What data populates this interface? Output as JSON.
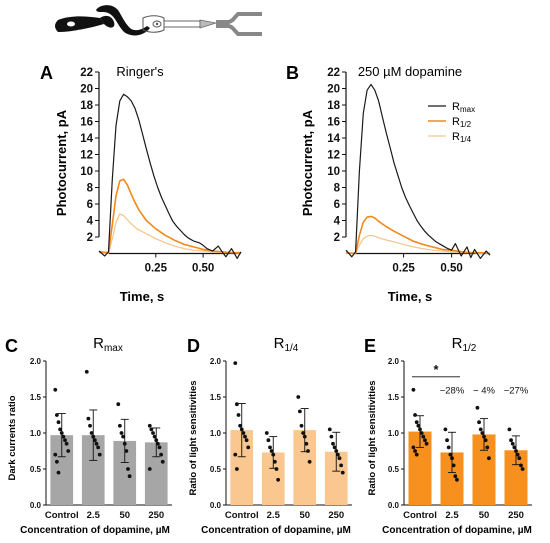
{
  "colors": {
    "black": "#1a1a1a",
    "orange": "#f0881a",
    "light_orange": "#f7c38c",
    "gray_bar": "#a6a6a6",
    "peach_bar": "#f9c78f",
    "orange_bar": "#f7901e"
  },
  "chart_data": [
    {
      "type": "line",
      "panel": "A",
      "title": "Ringer's",
      "xlabel": "Time, s",
      "ylabel": "Photocurrent, pA",
      "xlim": [
        -0.05,
        0.7
      ],
      "ylim": [
        -2,
        22
      ],
      "xticks": [
        "0.25",
        "0.50"
      ],
      "yticks": [
        "2",
        "4",
        "6",
        "8",
        "10",
        "12",
        "14",
        "16",
        "18",
        "20",
        "22"
      ],
      "series": [
        {
          "name": "R_max",
          "color": "#1a1a1a",
          "x": [
            -0.05,
            -0.02,
            0.0,
            0.02,
            0.04,
            0.06,
            0.08,
            0.1,
            0.12,
            0.14,
            0.16,
            0.18,
            0.2,
            0.22,
            0.24,
            0.26,
            0.28,
            0.3,
            0.32,
            0.34,
            0.36,
            0.38,
            0.4,
            0.42,
            0.45,
            0.48,
            0.5,
            0.52,
            0.55,
            0.58,
            0.6,
            0.62,
            0.65,
            0.68,
            0.7
          ],
          "y": [
            0.3,
            -0.3,
            0.2,
            9,
            15.5,
            18.5,
            19.3,
            19,
            18.5,
            17.6,
            16.2,
            14.5,
            12.7,
            11,
            9.4,
            8,
            6.8,
            5.8,
            4.8,
            3.9,
            3.3,
            2.8,
            2.3,
            1.9,
            1.5,
            1.3,
            1,
            0.6,
            0.3,
            0.9,
            0.2,
            -0.4,
            0.6,
            -0.6,
            0.2
          ]
        },
        {
          "name": "R_1/2",
          "color": "#f0881a",
          "x": [
            -0.05,
            0.0,
            0.02,
            0.04,
            0.06,
            0.08,
            0.1,
            0.12,
            0.14,
            0.16,
            0.2,
            0.25,
            0.3,
            0.35,
            0.4,
            0.45,
            0.5,
            0.55,
            0.6,
            0.65,
            0.7
          ],
          "y": [
            0.2,
            0.1,
            3.5,
            7,
            8.8,
            9,
            8.3,
            7.2,
            6.2,
            5.3,
            4,
            3,
            2.2,
            1.6,
            1.1,
            0.8,
            0.5,
            0.3,
            0.2,
            0.1,
            0.1
          ]
        },
        {
          "name": "R_1/4",
          "color": "#f7c38c",
          "x": [
            -0.05,
            0.0,
            0.02,
            0.04,
            0.06,
            0.08,
            0.1,
            0.12,
            0.15,
            0.2,
            0.25,
            0.3,
            0.35,
            0.4,
            0.45,
            0.5,
            0.55,
            0.6,
            0.65,
            0.7
          ],
          "y": [
            0.1,
            0.0,
            1.8,
            3.8,
            4.8,
            4.6,
            4.1,
            3.6,
            3,
            2.4,
            1.8,
            1.3,
            0.9,
            0.6,
            0.4,
            0.3,
            0.2,
            0.1,
            0.1,
            0.0
          ]
        }
      ]
    },
    {
      "type": "line",
      "panel": "B",
      "title": "250 µM dopamine",
      "xlabel": "Time, s",
      "ylabel": "Photocurrent, pA",
      "xlim": [
        -0.05,
        0.7
      ],
      "ylim": [
        -2,
        22
      ],
      "xticks": [
        "0.25",
        "0.50"
      ],
      "yticks": [
        "2",
        "4",
        "6",
        "8",
        "10",
        "12",
        "14",
        "16",
        "18",
        "20",
        "22"
      ],
      "legend": {
        "position": "top-right",
        "entries": [
          "R_max",
          "R_1/2",
          "R_1/4"
        ]
      },
      "series": [
        {
          "name": "R_max",
          "color": "#1a1a1a",
          "x": [
            -0.05,
            -0.02,
            0.0,
            0.02,
            0.04,
            0.06,
            0.08,
            0.1,
            0.12,
            0.14,
            0.16,
            0.18,
            0.2,
            0.22,
            0.24,
            0.26,
            0.28,
            0.3,
            0.32,
            0.34,
            0.36,
            0.38,
            0.4,
            0.42,
            0.45,
            0.48,
            0.5,
            0.52,
            0.55,
            0.58,
            0.6,
            0.62,
            0.65,
            0.68,
            0.7
          ],
          "y": [
            0.4,
            -0.4,
            0.2,
            10,
            17,
            19.8,
            20.5,
            19.8,
            18.5,
            16.5,
            14.6,
            12.8,
            11,
            9.5,
            8,
            6.8,
            5.8,
            4.9,
            4,
            3.3,
            2.7,
            2.2,
            1.8,
            1.4,
            1,
            0.6,
            0.4,
            1.2,
            -0.3,
            0.8,
            -0.5,
            0.5,
            -0.6,
            0.3,
            -0.2
          ]
        },
        {
          "name": "R_1/2",
          "color": "#f0881a",
          "x": [
            -0.05,
            0.0,
            0.02,
            0.04,
            0.06,
            0.08,
            0.1,
            0.12,
            0.15,
            0.2,
            0.25,
            0.3,
            0.35,
            0.4,
            0.45,
            0.5,
            0.55,
            0.6,
            0.65,
            0.7
          ],
          "y": [
            0.1,
            0.0,
            2.2,
            3.8,
            4.4,
            4.5,
            4.3,
            3.9,
            3.4,
            2.7,
            2.1,
            1.5,
            1.1,
            0.8,
            0.5,
            0.4,
            0.2,
            0.1,
            0.1,
            0.0
          ]
        },
        {
          "name": "R_1/4",
          "color": "#f7c38c",
          "x": [
            -0.05,
            0.0,
            0.02,
            0.04,
            0.06,
            0.08,
            0.1,
            0.12,
            0.15,
            0.2,
            0.25,
            0.3,
            0.35,
            0.4,
            0.45,
            0.5,
            0.55,
            0.6,
            0.65,
            0.7
          ],
          "y": [
            0.0,
            0.0,
            1.0,
            1.8,
            2.1,
            2.2,
            2.1,
            1.9,
            1.7,
            1.4,
            1.1,
            0.8,
            0.6,
            0.4,
            0.3,
            0.2,
            0.1,
            0.1,
            0.0,
            0.0
          ]
        }
      ]
    },
    {
      "type": "bar",
      "panel": "C",
      "title": "R_max",
      "xlabel": "Concentration of dopamine, µM",
      "ylabel": "Dark currents ratio",
      "ylim": [
        0,
        2.0
      ],
      "yticks": [
        "0.0",
        "0.5",
        "1.0",
        "1.5",
        "2.0"
      ],
      "categories": [
        "Control",
        "2.5",
        "50",
        "250"
      ],
      "values": [
        0.97,
        0.97,
        0.89,
        0.87
      ],
      "errors": [
        0.3,
        0.35,
        0.3,
        0.2
      ],
      "bar_color": "#a6a6a6",
      "points": [
        [
          1.6,
          1.25,
          1.15,
          1.05,
          1.0,
          0.95,
          0.9,
          0.85,
          0.75,
          0.7,
          0.6,
          0.45
        ],
        [
          1.85,
          1.2,
          1.1,
          1.0,
          0.95,
          0.9,
          0.85,
          0.8,
          0.7
        ],
        [
          1.4,
          1.1,
          1.0,
          0.95,
          0.85,
          0.75,
          0.5,
          0.4
        ],
        [
          1.1,
          1.05,
          1.0,
          0.95,
          0.9,
          0.85,
          0.8,
          0.7,
          0.6,
          0.5
        ]
      ]
    },
    {
      "type": "bar",
      "panel": "D",
      "title": "R_1/4",
      "xlabel": "Concentration of dopamine, µM",
      "ylabel": "Ratio of light sensitivities",
      "ylim": [
        0,
        2.0
      ],
      "yticks": [
        "0.0",
        "0.5",
        "1.0",
        "1.5",
        "2.0"
      ],
      "categories": [
        "Control",
        "2.5",
        "50",
        "250"
      ],
      "values": [
        1.04,
        0.73,
        1.04,
        0.74
      ],
      "errors": [
        0.37,
        0.22,
        0.3,
        0.27
      ],
      "bar_color": "#f9c78f",
      "points": [
        [
          1.97,
          1.4,
          1.25,
          1.1,
          1.05,
          1.0,
          0.95,
          0.9,
          0.8,
          0.7,
          0.5
        ],
        [
          1.0,
          0.9,
          0.8,
          0.75,
          0.7,
          0.6,
          0.5,
          0.35
        ],
        [
          1.5,
          1.3,
          1.1,
          1.0,
          0.95,
          0.85,
          0.75,
          0.6
        ],
        [
          1.05,
          0.95,
          0.85,
          0.8,
          0.75,
          0.7,
          0.65,
          0.55,
          0.45
        ]
      ]
    },
    {
      "type": "bar",
      "panel": "E",
      "title": "R_1/2",
      "xlabel": "Concentration of dopamine, µM",
      "ylabel": "Ratio of light sensitivities",
      "ylim": [
        0,
        2.0
      ],
      "yticks": [
        "0.0",
        "0.5",
        "1.0",
        "1.5",
        "2.0"
      ],
      "categories": [
        "Control",
        "2.5",
        "50",
        "250"
      ],
      "values": [
        1.02,
        0.73,
        0.98,
        0.76
      ],
      "errors": [
        0.22,
        0.28,
        0.22,
        0.2
      ],
      "bar_color": "#f7901e",
      "points": [
        [
          1.6,
          1.25,
          1.15,
          1.1,
          1.05,
          1.0,
          0.95,
          0.9,
          0.85,
          0.8,
          0.75,
          0.7
        ],
        [
          1.05,
          0.9,
          0.8,
          0.7,
          0.65,
          0.55,
          0.4,
          0.35
        ],
        [
          1.35,
          1.15,
          1.05,
          1.0,
          0.95,
          0.9,
          0.8,
          0.65
        ],
        [
          1.05,
          0.9,
          0.85,
          0.8,
          0.75,
          0.7,
          0.65,
          0.55,
          0.5
        ]
      ],
      "annotations": {
        "significance": "*",
        "percent_labels": [
          "−28%",
          "− 4%",
          "−27%"
        ]
      }
    }
  ],
  "panels": {
    "A": {
      "letter": "A",
      "title": "Ringer's",
      "ylabel": "Photocurrent, pA",
      "xlabel": "Time, s"
    },
    "B": {
      "letter": "B",
      "title": "250 µM dopamine",
      "ylabel": "Photocurrent, pA",
      "xlabel": "Time, s"
    },
    "C": {
      "letter": "C",
      "title_main": "R",
      "title_sub": "max",
      "ylabel": "Dark currents ratio",
      "xlabel": "Concentration of dopamine, µM"
    },
    "D": {
      "letter": "D",
      "title_main": "R",
      "title_sub": "1/4",
      "ylabel": "Ratio of light sensitivities",
      "xlabel": "Concentration of dopamine, µM"
    },
    "E": {
      "letter": "E",
      "title_main": "R",
      "title_sub": "1/2",
      "ylabel": "Ratio of light sensitivities",
      "xlabel": "Concentration of dopamine, µM"
    }
  },
  "legend": [
    {
      "main": "R",
      "sub": "max"
    },
    {
      "main": "R",
      "sub": "1/2"
    },
    {
      "main": "R",
      "sub": "1/4"
    }
  ],
  "illustration": {
    "icons": [
      "lamprey-icon",
      "rod-cell-icon"
    ]
  }
}
